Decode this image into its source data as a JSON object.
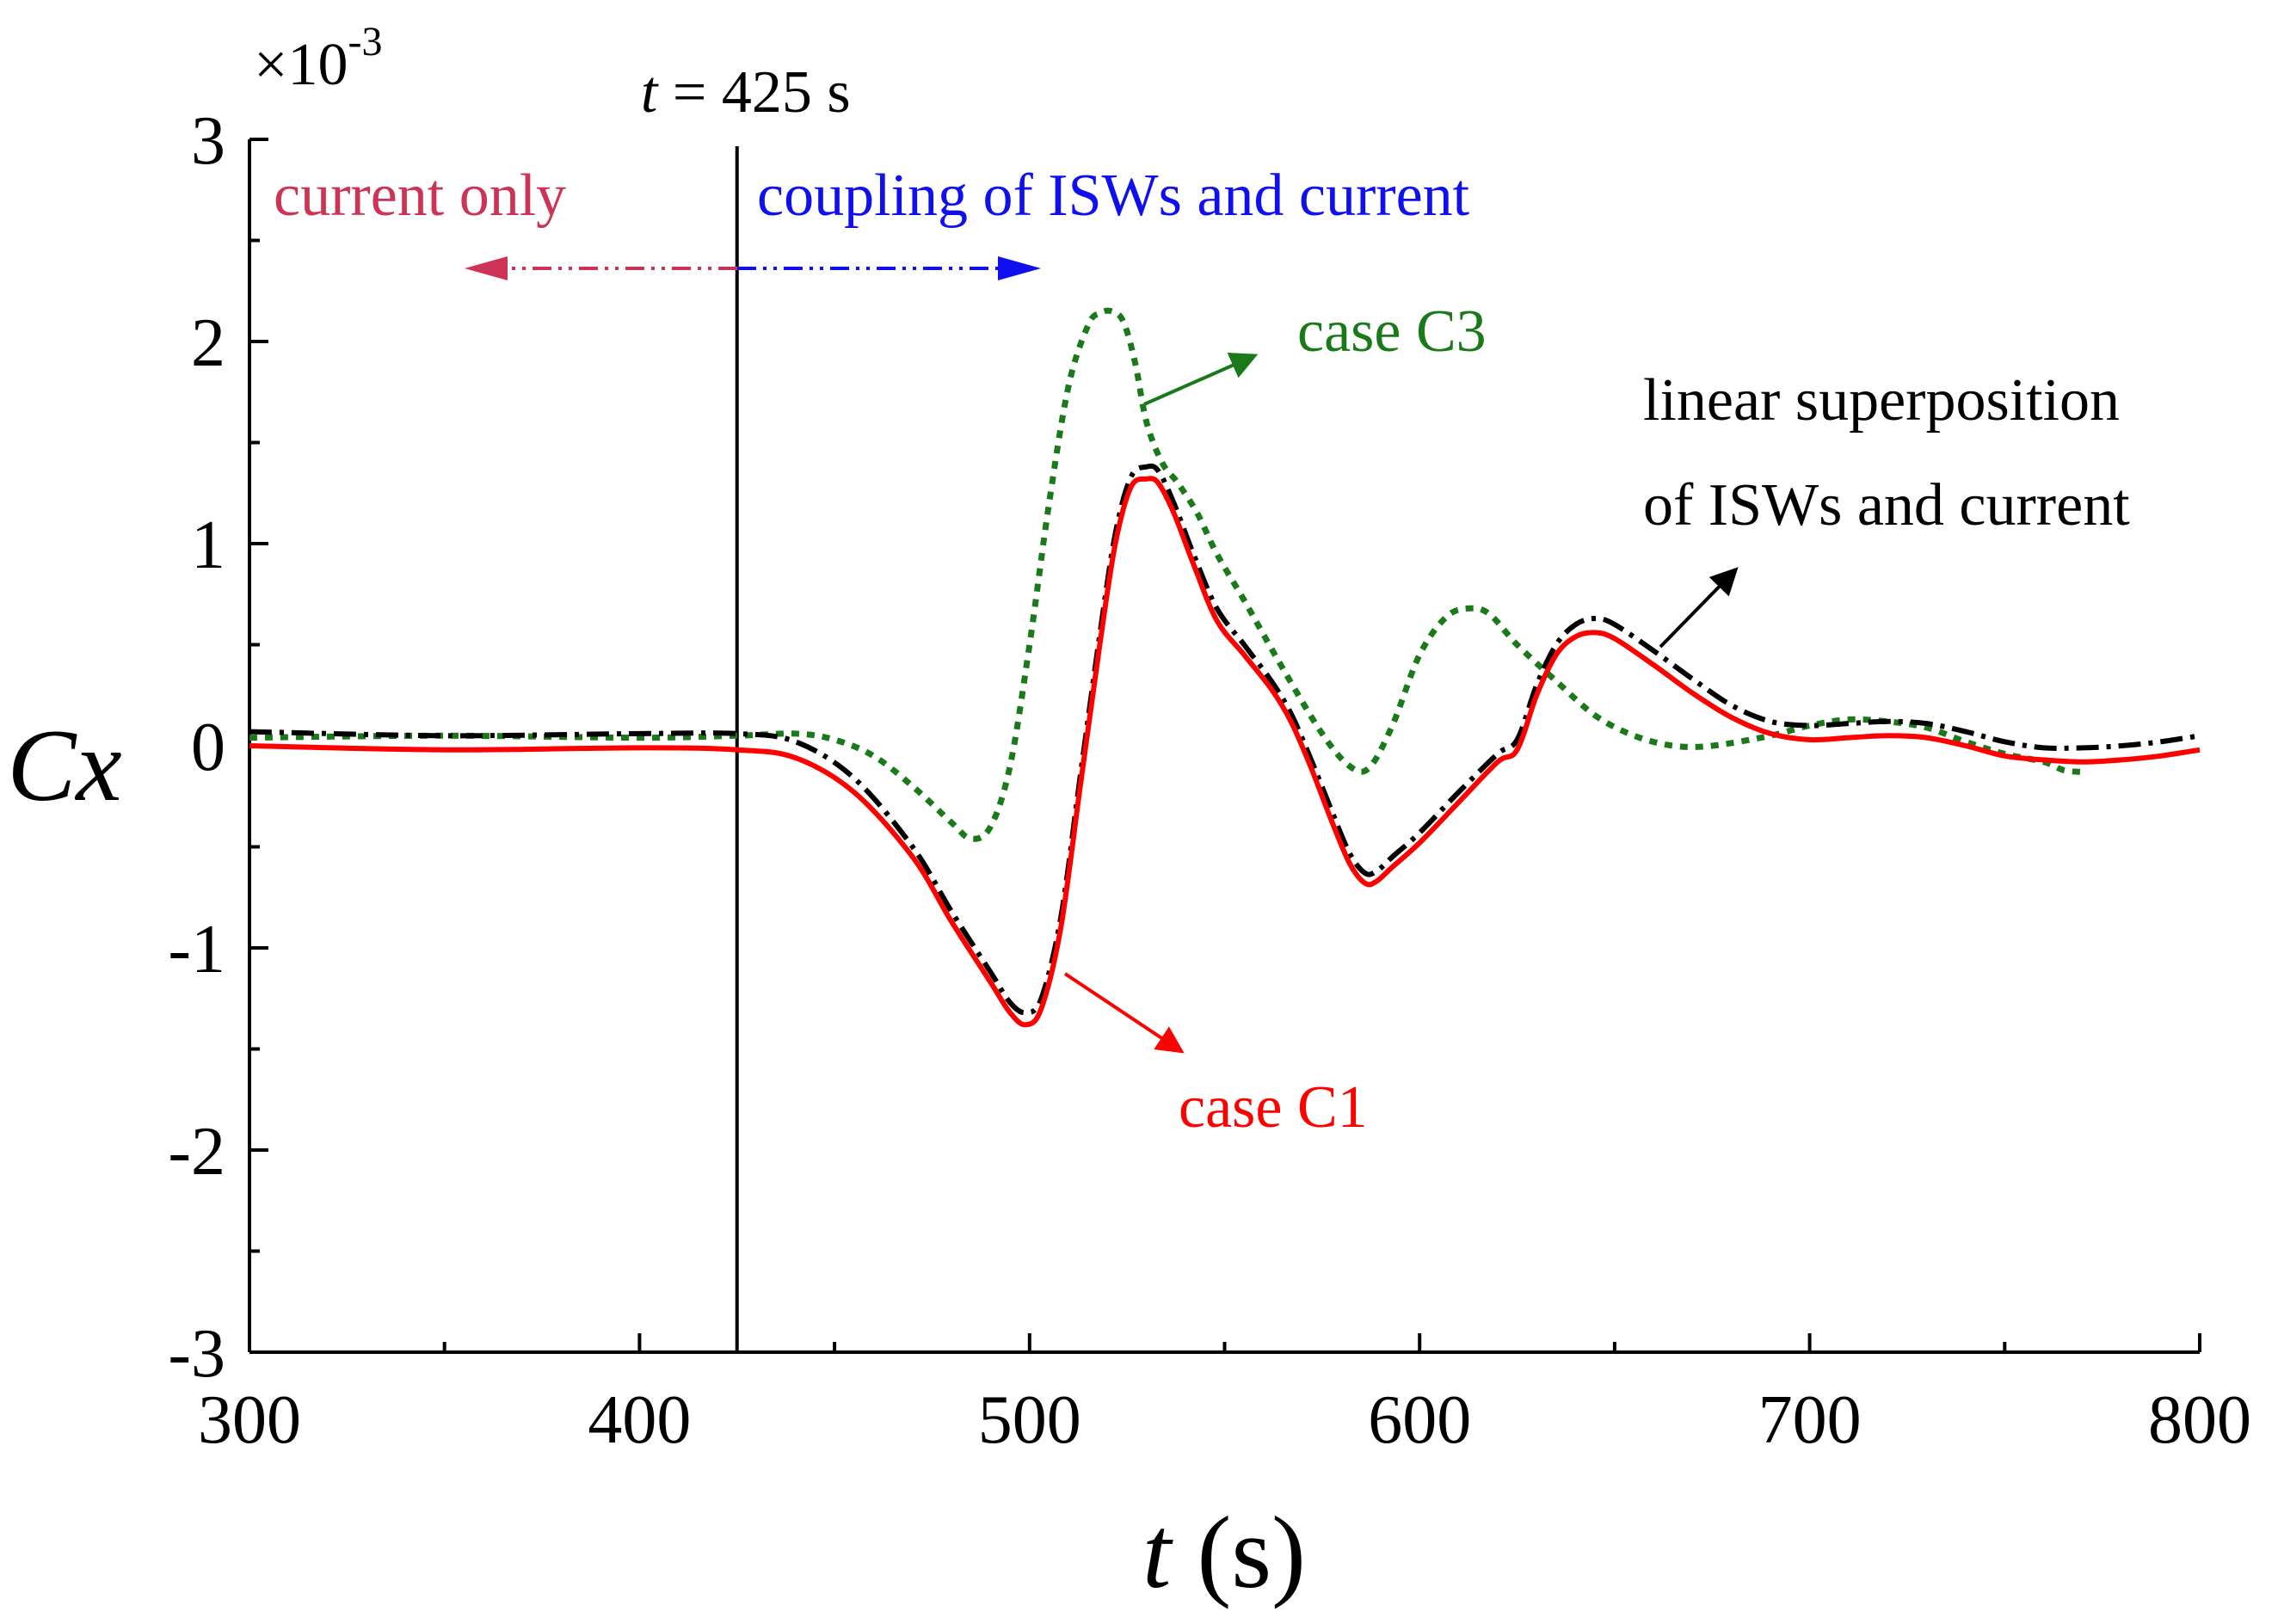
{
  "chart_data": {
    "type": "line",
    "xlabel_italic": "t",
    "xlabel_unit": "(s)",
    "ylabel": "Cx",
    "y_multiplier_base": "×10",
    "y_multiplier_exp": "-3",
    "xlim": [
      300,
      800
    ],
    "ylim": [
      -3,
      3
    ],
    "x_ticks": [
      300,
      400,
      500,
      600,
      700,
      800
    ],
    "x_tick_labels": [
      "300",
      "400",
      "500",
      "600",
      "700",
      "800"
    ],
    "y_ticks": [
      -3,
      -2,
      -1,
      0,
      1,
      2,
      3
    ],
    "y_tick_labels": [
      "-3",
      "-2",
      "-1",
      "0",
      "1",
      "2",
      "3"
    ],
    "marker_line": {
      "x": 425,
      "label_italic": "t",
      "label_rest": " = 425 s"
    },
    "region_labels": {
      "left": "current only",
      "right": "coupling of ISWs and current"
    },
    "colors": {
      "c1": "#ff0000",
      "c3": "#1a7a1a",
      "linear": "#000000",
      "left_region": "#cc3355",
      "right_region": "#1010ee",
      "axis": "#000000"
    },
    "series": [
      {
        "name": "case C1",
        "style": "solid",
        "x": [
          300,
          350,
          400,
          425,
          440,
          455,
          470,
          480,
          490,
          495,
          499,
          503,
          508,
          513,
          518,
          522,
          526,
          530,
          533,
          537,
          542,
          548,
          555,
          562,
          567,
          572,
          577,
          582,
          586,
          589,
          593,
          600,
          610,
          620,
          625,
          630,
          635,
          640,
          645,
          650,
          660,
          670,
          680,
          690,
          700,
          710,
          720,
          730,
          740,
          750,
          760,
          770,
          780,
          790,
          800
        ],
        "y": [
          0.0,
          -0.02,
          -0.01,
          -0.02,
          -0.06,
          -0.23,
          -0.55,
          -0.87,
          -1.17,
          -1.32,
          -1.38,
          -1.3,
          -0.9,
          -0.2,
          0.5,
          1.0,
          1.28,
          1.32,
          1.3,
          1.15,
          0.9,
          0.62,
          0.45,
          0.28,
          0.12,
          -0.1,
          -0.35,
          -0.58,
          -0.68,
          -0.67,
          -0.6,
          -0.48,
          -0.28,
          -0.08,
          -0.02,
          0.25,
          0.45,
          0.54,
          0.56,
          0.53,
          0.4,
          0.26,
          0.14,
          0.06,
          0.03,
          0.04,
          0.05,
          0.04,
          0.0,
          -0.05,
          -0.07,
          -0.08,
          -0.07,
          -0.05,
          -0.02
        ]
      },
      {
        "name": "linear superposition of ISWs and current",
        "style": "dash-dot",
        "x": [
          300,
          350,
          400,
          425,
          440,
          455,
          470,
          480,
          490,
          495,
          499,
          503,
          508,
          513,
          518,
          522,
          526,
          530,
          533,
          537,
          542,
          548,
          555,
          562,
          567,
          572,
          577,
          582,
          586,
          589,
          593,
          600,
          610,
          620,
          625,
          630,
          635,
          640,
          645,
          650,
          660,
          670,
          680,
          690,
          700,
          710,
          720,
          730,
          740,
          750,
          760,
          770,
          780,
          790,
          800
        ],
        "y": [
          0.07,
          0.05,
          0.06,
          0.06,
          0.02,
          -0.16,
          -0.5,
          -0.82,
          -1.12,
          -1.27,
          -1.32,
          -1.25,
          -0.85,
          -0.15,
          0.55,
          1.05,
          1.33,
          1.38,
          1.36,
          1.2,
          0.95,
          0.68,
          0.5,
          0.32,
          0.16,
          -0.06,
          -0.3,
          -0.53,
          -0.63,
          -0.62,
          -0.55,
          -0.43,
          -0.23,
          -0.04,
          0.03,
          0.3,
          0.5,
          0.6,
          0.63,
          0.6,
          0.47,
          0.33,
          0.2,
          0.12,
          0.1,
          0.11,
          0.12,
          0.11,
          0.07,
          0.02,
          -0.01,
          -0.01,
          0.0,
          0.02,
          0.05
        ]
      },
      {
        "name": "case C3",
        "style": "dotted",
        "x": [
          300,
          350,
          400,
          425,
          440,
          450,
          460,
          470,
          480,
          485,
          490,
          495,
          500,
          505,
          510,
          515,
          518,
          521,
          524,
          527,
          530,
          534,
          538,
          543,
          548,
          555,
          565,
          575,
          582,
          587,
          593,
          600,
          607,
          613,
          618,
          625,
          635,
          645,
          655,
          665,
          675,
          690,
          700,
          710,
          720,
          730,
          740,
          750,
          760,
          765,
          770
        ],
        "y": [
          0.04,
          0.05,
          0.04,
          0.05,
          0.06,
          0.03,
          -0.05,
          -0.2,
          -0.38,
          -0.46,
          -0.4,
          -0.1,
          0.5,
          1.2,
          1.78,
          2.08,
          2.14,
          2.15,
          2.1,
          1.9,
          1.6,
          1.4,
          1.3,
          1.15,
          0.95,
          0.72,
          0.38,
          0.06,
          -0.1,
          -0.11,
          0.1,
          0.45,
          0.64,
          0.68,
          0.65,
          0.5,
          0.32,
          0.15,
          0.05,
          0.0,
          0.0,
          0.05,
          0.1,
          0.13,
          0.12,
          0.09,
          0.02,
          -0.04,
          -0.08,
          -0.12,
          -0.13
        ]
      }
    ],
    "annotations": [
      {
        "text": "case C1",
        "points_to": "C1 curve near t = 505 s"
      },
      {
        "text": "case C3",
        "points_to": "C3 curve near t = 530 s"
      },
      {
        "lines": [
          "linear superposition",
          "of ISWs and current"
        ],
        "points_to": "linear curve near t = 660 s"
      }
    ]
  }
}
